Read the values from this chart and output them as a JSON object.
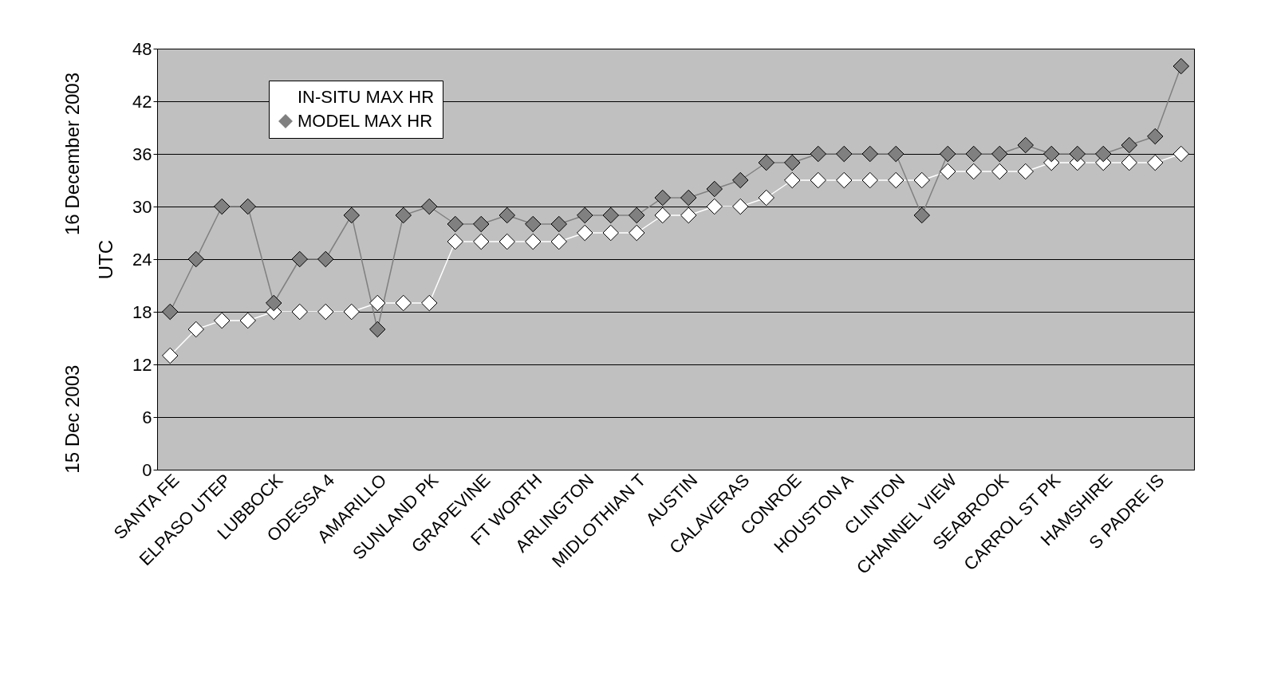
{
  "chart_data": {
    "type": "line",
    "ylabel": "UTC",
    "categories": [
      "SANTA FE",
      null,
      "ELPASO UTEP",
      null,
      "LUBBOCK",
      null,
      "ODESSA 4",
      null,
      "AMARILLO",
      null,
      "SUNLAND PK",
      null,
      "GRAPEVINE",
      null,
      "FT WORTH",
      null,
      "ARLINGTON",
      null,
      "MIDLOTHIAN T",
      null,
      "AUSTIN",
      null,
      "CALAVERAS",
      null,
      "CONROE",
      null,
      "HOUSTON A",
      null,
      "CLINTON",
      null,
      "CHANNEL VIEW",
      null,
      "SEABROOK",
      null,
      "CARROL ST PK",
      null,
      "HAMSHIRE",
      null,
      "S PADRE IS",
      null
    ],
    "series": [
      {
        "name": "IN-SITU MAX HR",
        "color": "#ffffff",
        "values": [
          13,
          16,
          17,
          17,
          18,
          18,
          18,
          18,
          19,
          19,
          19,
          26,
          26,
          26,
          26,
          26,
          27,
          27,
          27,
          29,
          29,
          30,
          30,
          31,
          33,
          33,
          33,
          33,
          33,
          33,
          34,
          34,
          34,
          34,
          35,
          35,
          35,
          35,
          35,
          36
        ]
      },
      {
        "name": "MODEL MAX HR",
        "color": "#808080",
        "values": [
          18,
          24,
          30,
          30,
          19,
          24,
          24,
          29,
          16,
          29,
          30,
          28,
          28,
          29,
          28,
          28,
          29,
          29,
          29,
          31,
          31,
          32,
          33,
          35,
          35,
          36,
          36,
          36,
          36,
          29,
          36,
          36,
          36,
          37,
          36,
          36,
          36,
          37,
          38,
          46
        ]
      }
    ],
    "ylim": [
      0,
      48
    ],
    "yticks": [
      0,
      6,
      12,
      18,
      24,
      30,
      36,
      42,
      48
    ],
    "annotations": [
      "16 December 2003",
      "15 Dec 2003"
    ],
    "grid": "y",
    "legend": "top left",
    "marker": "diamond"
  }
}
